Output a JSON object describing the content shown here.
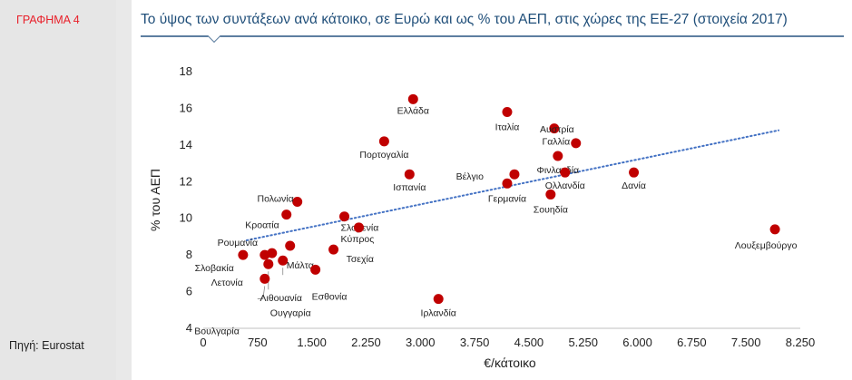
{
  "figure_label": "ΓΡΑΦΗΜΑ 4",
  "source": "Πηγή: Eurostat",
  "chart_data": {
    "type": "scatter",
    "title": "Το ύψος των συντάξεων ανά κάτοικο, σε Ευρώ και ως % του ΑΕΠ, στις χώρες της ΕΕ-27 (στοιχεία 2017)",
    "xlabel": "€/κάτοικο",
    "ylabel": "% του ΑΕΠ",
    "xlim": [
      0,
      8250
    ],
    "ylim": [
      4,
      18
    ],
    "xticks": [
      "0",
      "750",
      "1.500",
      "2.250",
      "3.000",
      "3.750",
      "4.500",
      "5.250",
      "6.000",
      "6.750",
      "7.500",
      "8.250"
    ],
    "yticks": [
      "4",
      "6",
      "8",
      "10",
      "12",
      "14",
      "16",
      "18"
    ],
    "grid": false,
    "trendline": {
      "style": "dotted",
      "color": "#4472c4",
      "x": [
        600,
        7950
      ],
      "y": [
        8.8,
        14.8
      ]
    },
    "marker_color": "#c00000",
    "points": [
      {
        "label": "Ελλάδα",
        "x": 2900,
        "y": 16.5
      },
      {
        "label": "Ιταλία",
        "x": 4200,
        "y": 15.8
      },
      {
        "label": "Γαλλία",
        "x": 4850,
        "y": 14.9
      },
      {
        "label": "Αυστρία",
        "x": 5150,
        "y": 14.1
      },
      {
        "label": "Πορτογαλία",
        "x": 2500,
        "y": 14.2
      },
      {
        "label": "Φινλανδία",
        "x": 4900,
        "y": 13.4
      },
      {
        "label": "Ολλανδία",
        "x": 5000,
        "y": 12.5
      },
      {
        "label": "Βέλγιο",
        "x": 4300,
        "y": 12.4
      },
      {
        "label": "Γερμανία",
        "x": 4200,
        "y": 11.9
      },
      {
        "label": "Σουηδία",
        "x": 4800,
        "y": 11.3
      },
      {
        "label": "Δανία",
        "x": 5950,
        "y": 12.5
      },
      {
        "label": "Ισπανία",
        "x": 2850,
        "y": 12.4
      },
      {
        "label": "Πολωνία",
        "x": 1300,
        "y": 10.9
      },
      {
        "label": "Κροατία",
        "x": 1150,
        "y": 10.2
      },
      {
        "label": "Σλοβενία",
        "x": 1950,
        "y": 10.1
      },
      {
        "label": "Κύπρος",
        "x": 2150,
        "y": 9.5
      },
      {
        "label": "Ρουμανία",
        "x": 550,
        "y": 8.0
      },
      {
        "label": "Σλοβακία",
        "x": 850,
        "y": 8.0
      },
      {
        "label": "Λετονία",
        "x": 950,
        "y": 8.1
      },
      {
        "label": "Λιθουανία",
        "x": 1100,
        "y": 7.7
      },
      {
        "label": "Ουγγαρία",
        "x": 900,
        "y": 7.5
      },
      {
        "label": "Βουλγαρία",
        "x": 850,
        "y": 6.7
      },
      {
        "label": "Μάλτα",
        "x": 1200,
        "y": 8.5
      },
      {
        "label": "Τσεχία",
        "x": 1800,
        "y": 8.3
      },
      {
        "label": "Εσθονία",
        "x": 1550,
        "y": 7.2
      },
      {
        "label": "Ιρλανδία",
        "x": 3250,
        "y": 5.6
      },
      {
        "label": "Λουξεμβούργο",
        "x": 7900,
        "y": 9.4
      }
    ]
  }
}
